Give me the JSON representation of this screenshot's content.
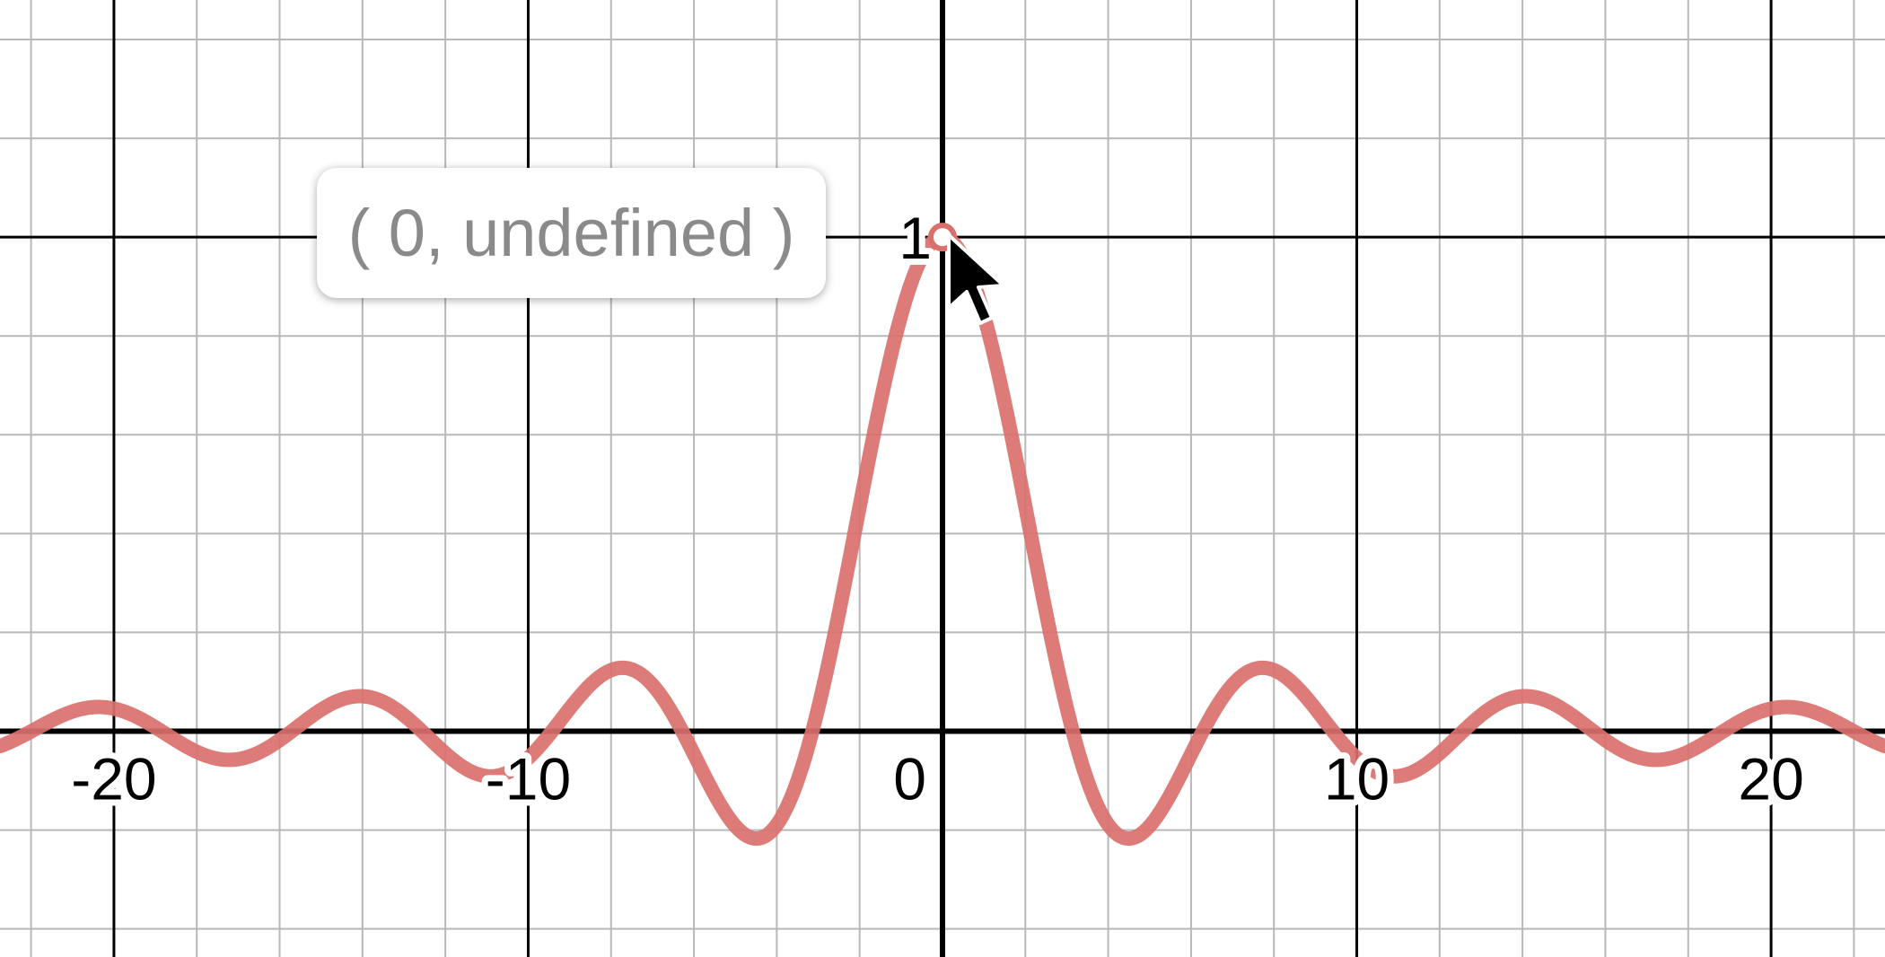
{
  "chart_data": {
    "type": "line",
    "function": "sin(x)/x",
    "xlim": [
      -22.75,
      22.75
    ],
    "ylim": [
      -0.457,
      1.48
    ],
    "major_x_step": 10,
    "minor_x_step": 2,
    "major_y_step": 1,
    "minor_y_step": 0.2,
    "x_tick_labels": [
      {
        "value": -20,
        "text": "-20"
      },
      {
        "value": -10,
        "text": "-10"
      },
      {
        "value": 0,
        "text": "0"
      },
      {
        "value": 10,
        "text": "10"
      },
      {
        "value": 20,
        "text": "20"
      }
    ],
    "y_tick_labels": [
      {
        "value": 1,
        "text": "1"
      }
    ],
    "grid": true,
    "series": [
      {
        "color": "#d9706c",
        "hole": {
          "x": 0,
          "y": 1
        }
      }
    ],
    "tooltip": {
      "text": "( 0, undefined )",
      "x": 0,
      "y": 1
    }
  },
  "colors": {
    "curve": "#d9706c",
    "axis": "#000000",
    "major_grid": "#000000",
    "minor_grid": "#b8b8b8",
    "tooltip_text": "#8a8a8a"
  },
  "cursor": {
    "icon": "arrow-cursor-icon"
  }
}
